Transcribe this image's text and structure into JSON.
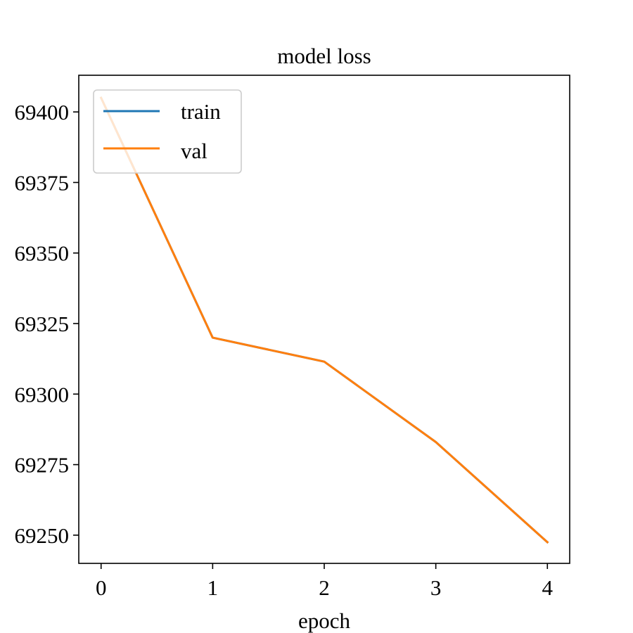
{
  "chart_data": {
    "type": "line",
    "title": "model loss",
    "xlabel": "epoch",
    "ylabel": "",
    "x": [
      0,
      1,
      2,
      3,
      4
    ],
    "x_ticks": [
      0,
      1,
      2,
      3,
      4
    ],
    "x_tick_labels": [
      "0",
      "1",
      "2",
      "3",
      "4"
    ],
    "y_ticks": [
      69250,
      69275,
      69300,
      69325,
      69350,
      69375,
      69400
    ],
    "y_tick_labels": [
      "69250",
      "69275",
      "69300",
      "69325",
      "69350",
      "69375",
      "69400"
    ],
    "xlim": [
      -0.2,
      4.2
    ],
    "ylim": [
      69240,
      69413
    ],
    "grid": false,
    "legend_position": "top-left",
    "series": [
      {
        "name": "train",
        "color": "#1f77b4",
        "values": [
          69405,
          69320,
          69311.5,
          69283,
          69247.5
        ]
      },
      {
        "name": "val",
        "color": "#ff7f0e",
        "values": [
          69405,
          69320,
          69311.5,
          69283,
          69247.5
        ]
      }
    ]
  }
}
